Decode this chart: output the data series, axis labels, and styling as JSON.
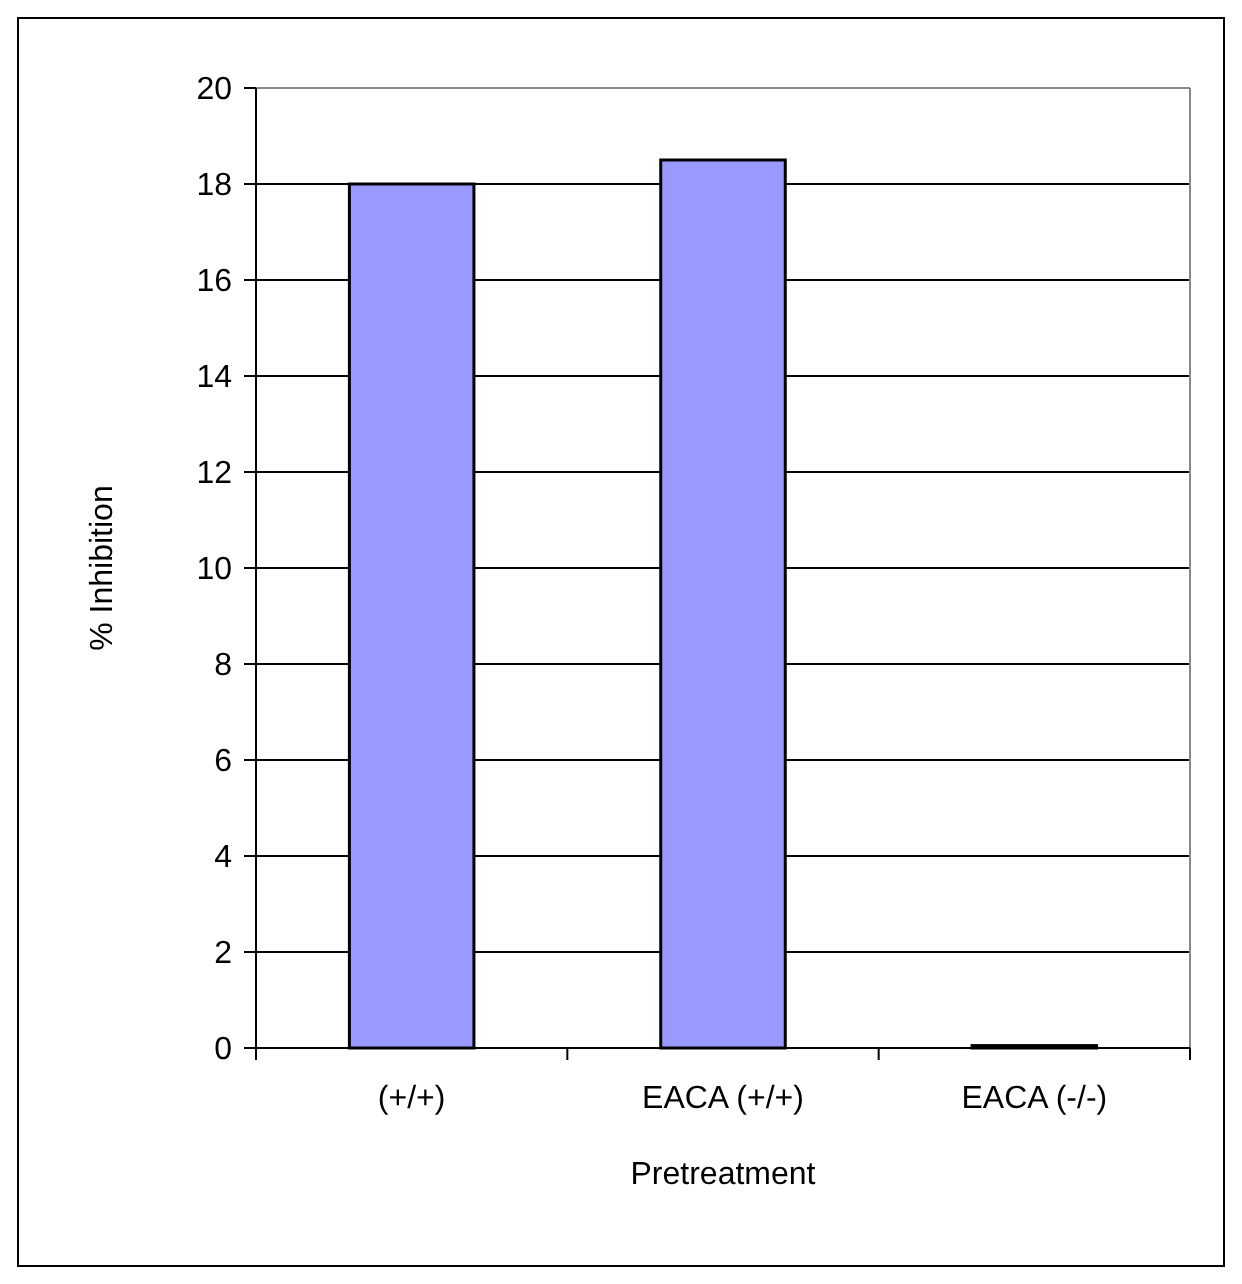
{
  "chart_data": {
    "type": "bar",
    "xlabel": "Pretreatment",
    "ylabel": "% Inhibition",
    "categories": [
      "(+/+)",
      "EACA (+/+)",
      "EACA (-/-)"
    ],
    "values": [
      18,
      18.5,
      0.05
    ],
    "color": "#9999ff",
    "ylim": [
      0,
      20
    ],
    "yticks": [
      0,
      2,
      4,
      6,
      8,
      10,
      12,
      14,
      16,
      18,
      20
    ],
    "grid": "y"
  }
}
